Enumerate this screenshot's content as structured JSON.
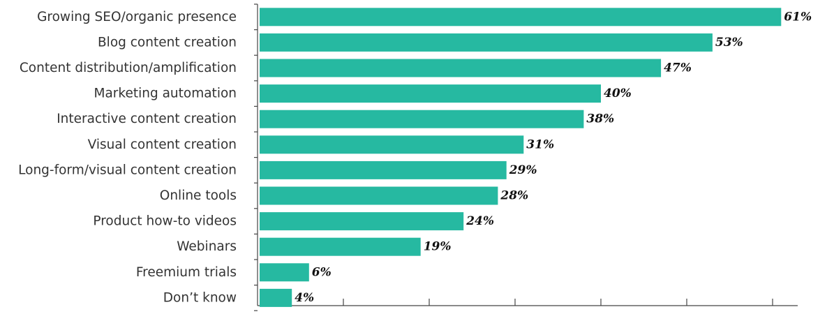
{
  "chart_data": {
    "type": "bar",
    "orientation": "horizontal",
    "categories": [
      "Growing SEO/organic presence",
      "Blog content creation",
      "Content distribution/amplification",
      "Marketing automation",
      "Interactive content creation",
      "Visual content creation",
      "Long-form/visual content creation",
      "Online tools",
      "Product how-to videos",
      "Webinars",
      "Freemium trials",
      "Don’t know"
    ],
    "values": [
      61,
      53,
      47,
      40,
      38,
      31,
      29,
      28,
      24,
      19,
      6,
      4
    ],
    "value_labels": [
      "61%",
      "53%",
      "47%",
      "40%",
      "38%",
      "31%",
      "29%",
      "28%",
      "24%",
      "19%",
      "6%",
      "4%"
    ],
    "xlim": [
      0,
      60
    ],
    "x_ticks": [
      0,
      10,
      20,
      30,
      40,
      50,
      60
    ],
    "bar_color": "#26b9a1",
    "grid": false,
    "legend": "none",
    "title": "",
    "xlabel": "",
    "ylabel": ""
  }
}
